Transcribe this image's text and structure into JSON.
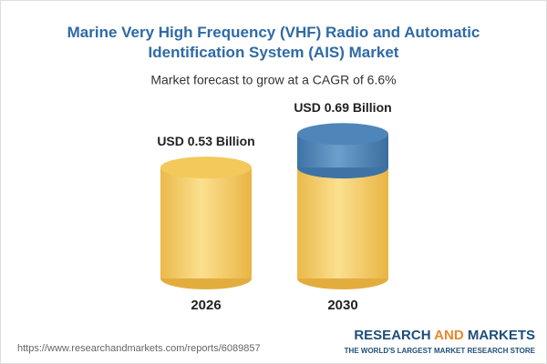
{
  "chart_data": {
    "type": "cylinder",
    "title": "Marine Very High Frequency (VHF) Radio and Automatic Identification System (AIS) Market",
    "subtitle": "Market forecast to grow at a CAGR of 6.6%",
    "categories": [
      "2026",
      "2030"
    ],
    "values": [
      0.53,
      0.69
    ],
    "value_labels": [
      "USD 0.53 Billion",
      "USD 0.69 Billion"
    ],
    "color": "#f3c95c",
    "highlight_color": "#4f86ba"
  },
  "footer": {
    "url": "https://www.researchandmarkets.com/reports/6089857",
    "brand": [
      "RESEARCH",
      "AND",
      "MARKETS"
    ],
    "tagline": "THE WORLD'S LARGEST MARKET RESEARCH STORE"
  }
}
